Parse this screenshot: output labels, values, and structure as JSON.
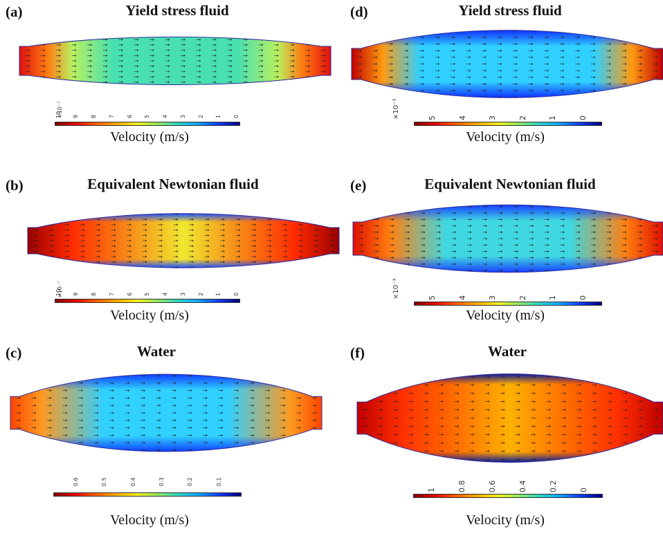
{
  "figure": {
    "panels": [
      {
        "id": "a",
        "letter": "(a)",
        "title": "Yield stress fluid",
        "profile": "uniform",
        "colorbar": {
          "exponent": "×10⁻⁷",
          "ticks": [
            "10",
            "9",
            "8",
            "7",
            "6",
            "5",
            "4",
            "3",
            "2",
            "1",
            "0"
          ],
          "label": "Velocity (m/s)"
        }
      },
      {
        "id": "b",
        "letter": "(b)",
        "title": "Equivalent Newtonian fluid",
        "profile": "newtonian",
        "colorbar": {
          "exponent": "×10⁻⁷",
          "ticks": [
            "10",
            "9",
            "8",
            "7",
            "6",
            "5",
            "4",
            "3",
            "2",
            "1",
            "0"
          ],
          "label": "Velocity (m/s)"
        }
      },
      {
        "id": "c",
        "letter": "(c)",
        "title": "Water",
        "profile": "water",
        "colorbar": {
          "exponent": "",
          "ticks": [
            "0.6",
            "0.5",
            "0.4",
            "0.3",
            "0.2",
            "0.1"
          ],
          "label": "Velocity (m/s)"
        }
      },
      {
        "id": "d",
        "letter": "(d)",
        "title": "Yield stress fluid",
        "profile": "yield2",
        "colorbar": {
          "exponent": "×10⁻³",
          "ticks": [
            "5",
            "4",
            "3",
            "2",
            "1",
            "0"
          ],
          "label": "Velocity (m/s)"
        }
      },
      {
        "id": "e",
        "letter": "(e)",
        "title": "Equivalent Newtonian fluid",
        "profile": "newtonian2",
        "colorbar": {
          "exponent": "×10⁻³",
          "ticks": [
            "5",
            "4",
            "3",
            "2",
            "1",
            "0"
          ],
          "label": "Velocity (m/s)"
        }
      },
      {
        "id": "f",
        "letter": "(f)",
        "title": "Water",
        "profile": "water2",
        "colorbar": {
          "exponent": "",
          "ticks": [
            "1",
            "0.8",
            "0.6",
            "0.4",
            "0.2",
            "0"
          ],
          "label": "Velocity (m/s)"
        }
      }
    ]
  }
}
